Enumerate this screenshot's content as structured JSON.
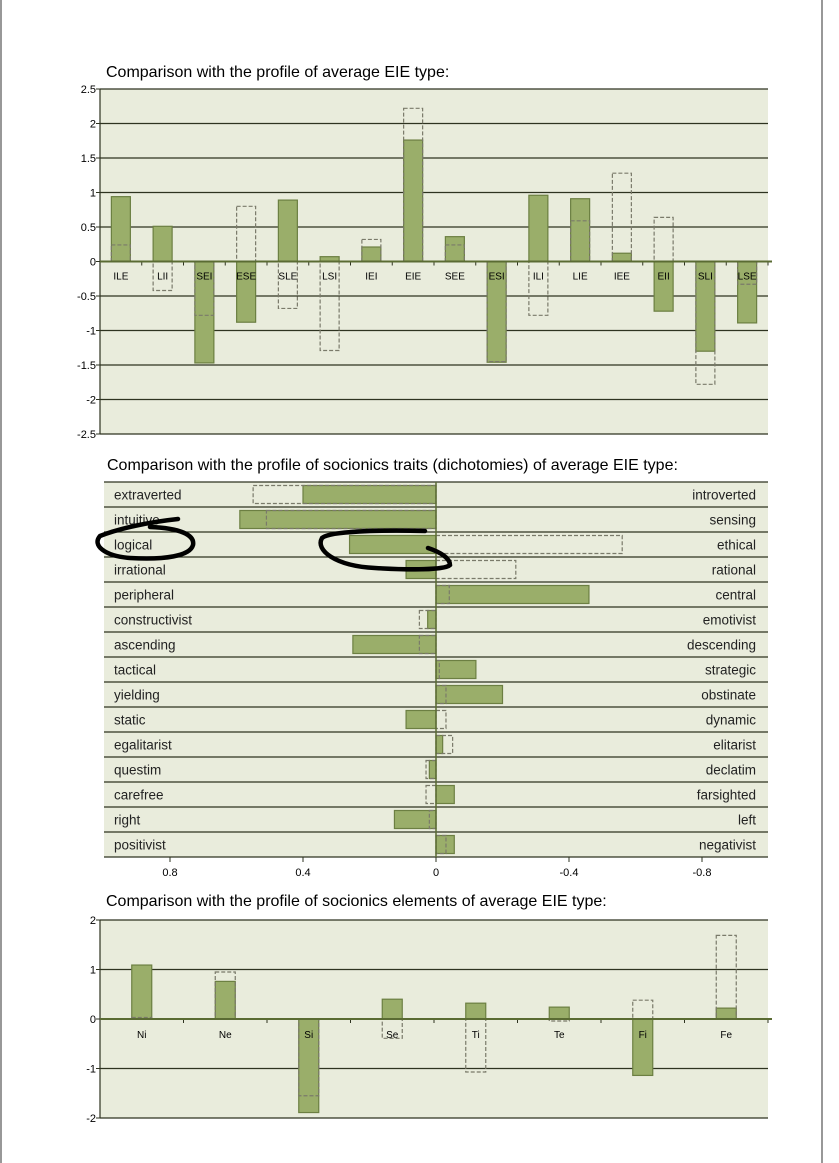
{
  "colors": {
    "plot_bg": "#e9ecdc",
    "bar_fill": "#9aae6a",
    "bar_stroke": "#6c7f42",
    "grid": "#2e3320",
    "dash": "#7a7a6a"
  },
  "chart_data": [
    {
      "type": "bar",
      "title": "Comparison with the profile of average EIE type:",
      "ylim": [
        -2.5,
        2.5
      ],
      "yticks": [
        "2.5",
        "2",
        "1.5",
        "1",
        "0.5",
        "0",
        "-0.5",
        "-1",
        "-1.5",
        "-2",
        "-2.5"
      ],
      "ytick_values": [
        2.5,
        2,
        1.5,
        1,
        0.5,
        0,
        -0.5,
        -1,
        -1.5,
        -2,
        -2.5
      ],
      "grid": true,
      "categories": [
        "ILE",
        "LII",
        "SEI",
        "ESE",
        "SLE",
        "LSI",
        "IEI",
        "EIE",
        "SEE",
        "ESI",
        "ILI",
        "LIE",
        "IEE",
        "EII",
        "SLI",
        "LSE"
      ],
      "series": [
        {
          "name": "profile",
          "style": "solid",
          "values": [
            0.94,
            0.51,
            -1.47,
            -0.88,
            0.89,
            0.07,
            0.21,
            1.76,
            0.36,
            -1.46,
            0.96,
            0.91,
            0.12,
            -0.72,
            -1.3,
            -0.89
          ]
        },
        {
          "name": "average EIE",
          "style": "dashed",
          "values": [
            0.24,
            -0.42,
            -0.78,
            0.8,
            -0.68,
            -1.29,
            0.32,
            2.22,
            0.24,
            -1.45,
            -0.78,
            0.59,
            1.28,
            0.64,
            -1.78,
            -0.33
          ]
        }
      ]
    },
    {
      "type": "bar",
      "orientation": "horizontal",
      "title": "Comparison with the profile of socionics traits (dichotomies) of average EIE type:",
      "xlim": [
        1.0,
        -1.0
      ],
      "xticks": [
        "0.8",
        "0.4",
        "0",
        "-0.4",
        "-0.8"
      ],
      "xtick_values": [
        0.8,
        0.4,
        0,
        -0.4,
        -0.8
      ],
      "left_labels": [
        "extraverted",
        "intuitive",
        "logical",
        "irrational",
        "peripheral",
        "constructivist",
        "ascending",
        "tactical",
        "yielding",
        "static",
        "egalitarist",
        "questim",
        "carefree",
        "right",
        "positivist"
      ],
      "right_labels": [
        "introverted",
        "sensing",
        "ethical",
        "rational",
        "central",
        "emotivist",
        "descending",
        "strategic",
        "obstinate",
        "dynamic",
        "elitarist",
        "declatim",
        "farsighted",
        "left",
        "negativist"
      ],
      "series": [
        {
          "name": "profile",
          "style": "solid",
          "values": [
            0.4,
            0.59,
            0.26,
            0.09,
            -0.46,
            0.025,
            0.25,
            -0.12,
            -0.2,
            0.09,
            -0.02,
            0.02,
            -0.055,
            0.125,
            -0.055
          ]
        },
        {
          "name": "average EIE",
          "style": "dashed",
          "values": [
            0.55,
            0.51,
            -0.56,
            -0.24,
            -0.04,
            0.05,
            0.05,
            -0.01,
            -0.03,
            -0.03,
            -0.05,
            0.03,
            0.03,
            0.02,
            -0.03
          ]
        }
      ]
    },
    {
      "type": "bar",
      "title": "Comparison with the profile of socionics elements of average EIE type:",
      "ylim": [
        -2,
        2
      ],
      "yticks": [
        "2",
        "1",
        "0",
        "-1",
        "-2"
      ],
      "ytick_values": [
        2,
        1,
        0,
        -1,
        -2
      ],
      "grid": true,
      "categories": [
        "Ni",
        "Ne",
        "Si",
        "Se",
        "Ti",
        "Te",
        "Fi",
        "Fe"
      ],
      "series": [
        {
          "name": "profile",
          "style": "solid",
          "values": [
            1.09,
            0.76,
            -1.89,
            0.4,
            0.32,
            0.24,
            -1.14,
            0.22
          ]
        },
        {
          "name": "average EIE",
          "style": "dashed",
          "values": [
            0.03,
            0.95,
            -1.55,
            -0.39,
            -1.07,
            -0.04,
            0.38,
            1.69
          ]
        }
      ]
    }
  ]
}
